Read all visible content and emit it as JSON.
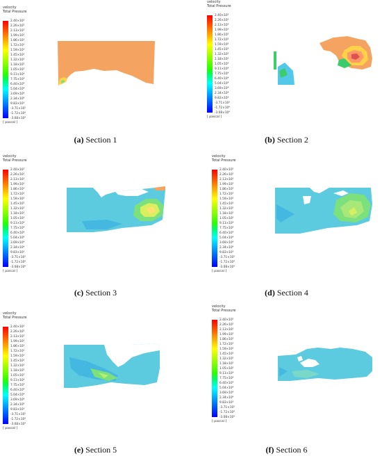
{
  "legend": {
    "title1": "velocity",
    "title2": "Total Pressure",
    "unit": "[ pascal ]",
    "ticks": [
      "2.40×10⁵",
      "2.26×10⁵",
      "2.13×10⁵",
      "1.99×10⁵",
      "1.86×10⁵",
      "1.72×10⁵",
      "1.59×10⁵",
      "1.45×10⁵",
      "1.32×10⁵",
      "1.18×10⁵",
      "1.05×10⁵",
      "9.11×10⁴",
      "7.75×10⁴",
      "6.40×10⁴",
      "5.04×10⁴",
      "3.69×10⁴",
      "2.34×10⁴",
      "9.83×10³",
      "-3.71×10³",
      "-1.72×10⁴",
      "-3.08×10⁴"
    ],
    "colors": [
      "#ff0000",
      "#ff2a00",
      "#ff5500",
      "#ff8000",
      "#ffaa00",
      "#ffd500",
      "#ffff00",
      "#d5ff00",
      "#aaff00",
      "#80ff00",
      "#55ff00",
      "#2aff00",
      "#00ff55",
      "#00ffaa",
      "#00ffff",
      "#00d5ff",
      "#00aaff",
      "#0080ff",
      "#0055ff",
      "#002aff",
      "#0000ff"
    ]
  },
  "panels": [
    {
      "label": "(a)",
      "name": "Section 1"
    },
    {
      "label": "(b)",
      "name": "Section 2"
    },
    {
      "label": "(c)",
      "name": "Section 3"
    },
    {
      "label": "(d)",
      "name": "Section 4"
    },
    {
      "label": "(e)",
      "name": "Section 5"
    },
    {
      "label": "(f)",
      "name": "Section 6"
    }
  ]
}
